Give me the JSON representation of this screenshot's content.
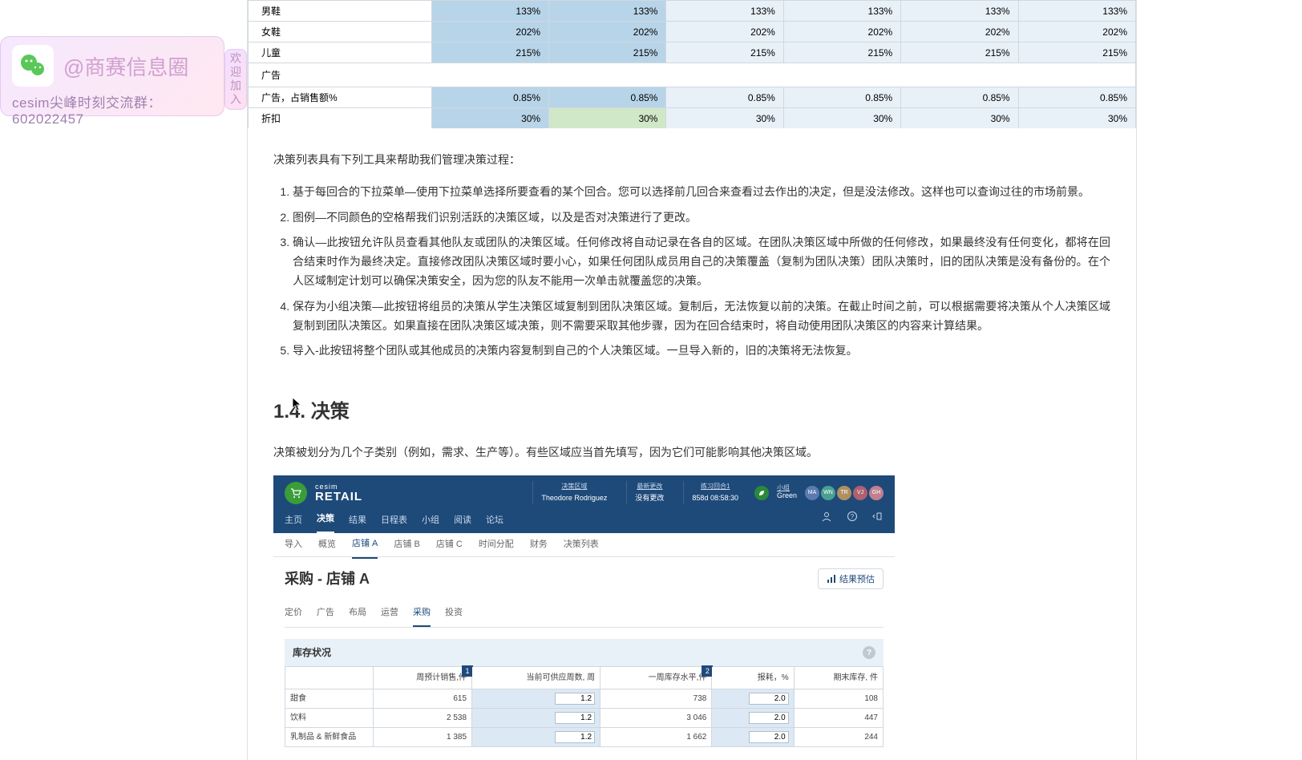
{
  "wechat": {
    "account": "@商赛信息圈",
    "group": "cesim尖峰时刻交流群：602022457",
    "side": "欢迎加入"
  },
  "topTable": {
    "rows": [
      {
        "label": "男鞋",
        "vals": [
          "133%",
          "133%",
          "133%",
          "133%",
          "133%",
          "133%"
        ],
        "style": "blue"
      },
      {
        "label": "女鞋",
        "vals": [
          "202%",
          "202%",
          "202%",
          "202%",
          "202%",
          "202%"
        ],
        "style": "blue"
      },
      {
        "label": "儿童",
        "vals": [
          "215%",
          "215%",
          "215%",
          "215%",
          "215%",
          "215%"
        ],
        "style": "blue"
      }
    ],
    "adHeader": "广告",
    "adRows": [
      {
        "label": "广告，占销售额%",
        "vals": [
          "0.85%",
          "0.85%",
          "0.85%",
          "0.85%",
          "0.85%",
          "0.85%"
        ],
        "style": "blue"
      },
      {
        "label": "折扣",
        "vals": [
          "30%",
          "30%",
          "30%",
          "30%",
          "30%",
          "30%"
        ],
        "style": "partial"
      }
    ]
  },
  "text": {
    "intro": "决策列表具有下列工具来帮助我们管理决策过程：",
    "items": [
      "基于每回合的下拉菜单—使用下拉菜单选择所要查看的某个回合。您可以选择前几回合来查看过去作出的决定，但是没法修改。这样也可以查询过往的市场前景。",
      "图例—不同颜色的空格帮我们识别活跃的决策区域，以及是否对决策进行了更改。",
      "确认—此按钮允许队员查看其他队友或团队的决策区域。任何修改将自动记录在各自的区域。在团队决策区域中所做的任何修改，如果最终没有任何变化，都将在回合结束时作为最终决定。直接修改团队决策区域时要小心，如果任何团队成员用自己的决策覆盖（复制为团队决策）团队决策时，旧的团队决策是没有备份的。在个人区域制定计划可以确保决策安全，因为您的队友不能用一次单击就覆盖您的决策。",
      "保存为小组决策—此按钮将组员的决策从学生决策区域复制到团队决策区域。复制后，无法恢复以前的决策。在截止时间之前，可以根据需要将决策从个人决策区域复制到团队决策区。如果直接在团队决策区域决策，则不需要采取其他步骤，因为在回合结束时，将自动使用团队决策区的内容来计算结果。",
      "导入-此按钮将整个团队或其他成员的决策内容复制到自己的个人决策区域。一旦导入新的，旧的决策将无法恢复。"
    ],
    "heading": "1.4. 决策",
    "p2": "决策被划分为几个子类别（例如，需求、生产等）。有些区域应当首先填写，因为它们可能影响其他决策区域。"
  },
  "app": {
    "brand_small": "cesim",
    "brand_big": "RETAIL",
    "meta": [
      {
        "top": "决策区域",
        "bot": "Theodore Rodriguez"
      },
      {
        "top": "最新更改",
        "bot": "没有更改"
      },
      {
        "top": "练习回合1",
        "bot": "858d 08:58:30"
      }
    ],
    "team_sub": "小组",
    "team": "Green",
    "avatars": [
      {
        "t": "MA",
        "c": "#5a7ab0"
      },
      {
        "t": "WN",
        "c": "#4aa090"
      },
      {
        "t": "TR",
        "c": "#b09060"
      },
      {
        "t": "VJ",
        "c": "#b06070"
      },
      {
        "t": "GH",
        "c": "#c08090"
      }
    ],
    "nav1": [
      "主页",
      "决策",
      "结果",
      "日程表",
      "小组",
      "阅读",
      "论坛"
    ],
    "nav1_active": 1,
    "nav2": [
      "导入",
      "概览",
      "店铺 A",
      "店铺 B",
      "店铺 C",
      "时间分配",
      "财务",
      "决策列表"
    ],
    "nav2_active": 2,
    "page_title": "采购 - 店铺 A",
    "preview_btn": "结果预估",
    "nav3": [
      "定价",
      "广告",
      "布局",
      "运营",
      "采购",
      "投资"
    ],
    "nav3_active": 4,
    "inv_title": "库存状况",
    "inv_cols": [
      "",
      "周预计销售,件",
      "当前可供应周数, 周",
      "一周库存水平,件",
      "报耗，%",
      "期末库存, 件"
    ],
    "callouts": {
      "1": 1,
      "3": 2
    },
    "inv_rows": [
      {
        "label": "甜食",
        "forecast": "615",
        "supply": "1.2",
        "stock": "738",
        "loss": "2.0",
        "end": "108"
      },
      {
        "label": "饮料",
        "forecast": "2 538",
        "supply": "1.2",
        "stock": "3 046",
        "loss": "2.0",
        "end": "447"
      },
      {
        "label": "乳制品 & 新鲜食品",
        "forecast": "1 385",
        "supply": "1.2",
        "stock": "1 662",
        "loss": "2.0",
        "end": "244"
      }
    ]
  }
}
